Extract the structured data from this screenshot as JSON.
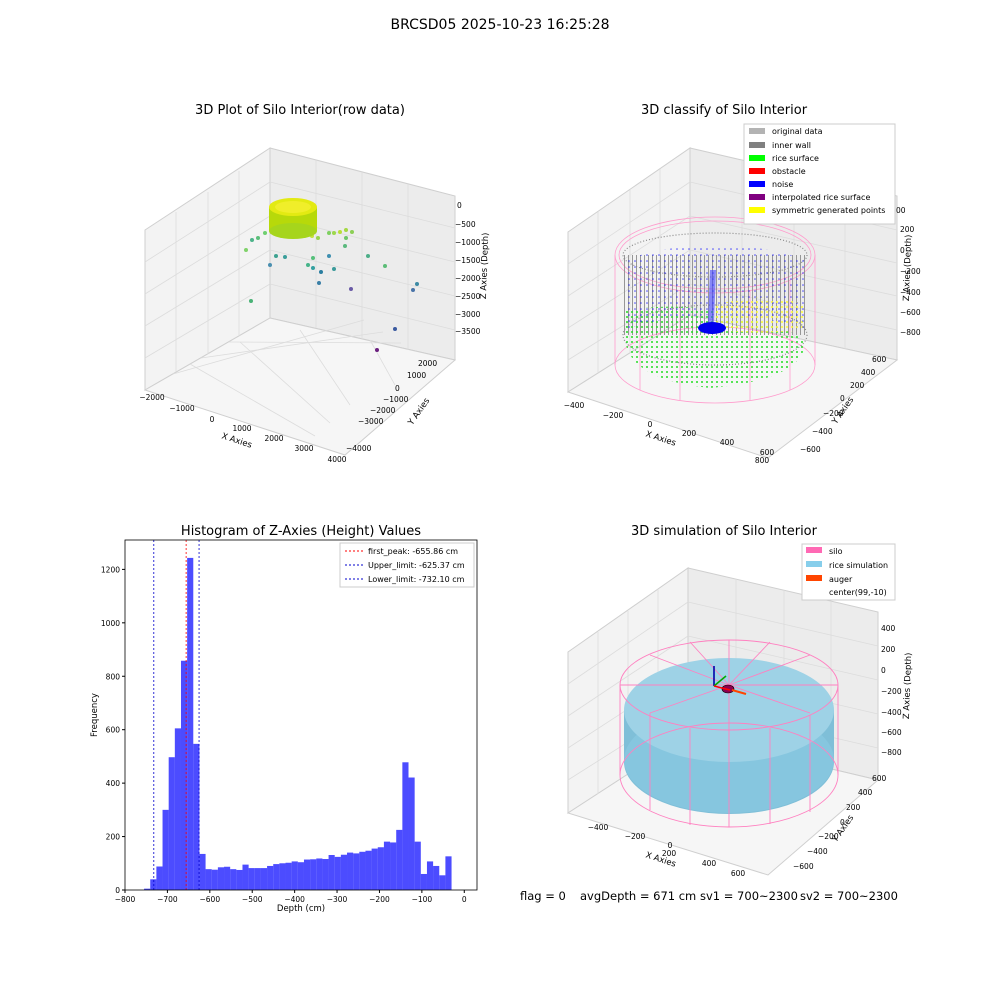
{
  "figure_title": "BRCSD05 2025-10-23 16:25:28",
  "panels": {
    "raw": {
      "title": "3D Plot of Silo Interior(row data)",
      "xlabel": "X Axies",
      "ylabel": "Y Axies",
      "zlabel": "Z Axies (Depth)",
      "xticks": [
        "−2000",
        "−1000",
        "0",
        "1000",
        "2000",
        "3000",
        "4000"
      ],
      "yticks": [
        "2000",
        "1000",
        "0",
        "−1000",
        "−2000",
        "−3000",
        "−4000"
      ],
      "zticks": [
        "0",
        "−500",
        "−1000",
        "−1500",
        "−2000",
        "−2500",
        "−3000",
        "−3500"
      ]
    },
    "classify": {
      "title": "3D classify of Silo Interior",
      "xlabel": "X Axies",
      "ylabel": "Y Axies",
      "zlabel": "Z Axies (Depth)",
      "xticks": [
        "−400",
        "−200",
        "0",
        "200",
        "400",
        "600",
        "800"
      ],
      "yticks": [
        "600",
        "400",
        "200",
        "0",
        "−200",
        "−400",
        "−600"
      ],
      "zticks": [
        "200",
        "0",
        "−200",
        "−400",
        "−600",
        "−800"
      ],
      "zticks_partial": "00",
      "legend": [
        {
          "label": "original data",
          "color": "#b3b3b3"
        },
        {
          "label": "inner wall",
          "color": "#808080"
        },
        {
          "label": "rice surface",
          "color": "#00ff00"
        },
        {
          "label": "obstacle",
          "color": "#ff0000"
        },
        {
          "label": "noise",
          "color": "#0000ff"
        },
        {
          "label": "interpolated rice surface",
          "color": "#800080"
        },
        {
          "label": "symmetric generated points",
          "color": "#ffff00"
        }
      ]
    },
    "simulation": {
      "title": "3D simulation of Silo Interior",
      "xlabel": "X Axies",
      "ylabel": "Y Axies",
      "zlabel": "Z Axies (Depth)",
      "xticks": [
        "−400",
        "−200",
        "0",
        "200",
        "400",
        "600"
      ],
      "yticks": [
        "600",
        "400",
        "200",
        "0",
        "−200",
        "−400",
        "−600"
      ],
      "zticks": [
        "400",
        "200",
        "0",
        "−200",
        "−400",
        "−600",
        "−800"
      ],
      "legend": [
        {
          "label": "silo",
          "color": "#ff69b4"
        },
        {
          "label": "rice simulation",
          "color": "#87ceeb"
        },
        {
          "label": "auger",
          "color": "#ff4500"
        },
        {
          "label": "center(99,-10)",
          "color": ""
        }
      ]
    }
  },
  "footer": {
    "flag": "flag = 0",
    "avg": "avgDepth = 671 cm",
    "sv1": "sv1 = 700~2300",
    "sv2": "sv2 = 700~2300"
  },
  "chart_data": {
    "type": "bar",
    "title": "Histogram of Z-Axies (Height) Values",
    "xlabel": "Depth (cm)",
    "ylabel": "Frequency",
    "xlim": [
      -800,
      30
    ],
    "ylim": [
      0,
      1310
    ],
    "xticks": [
      -800,
      -700,
      -600,
      -500,
      -400,
      -300,
      -200,
      -100,
      0
    ],
    "yticks": [
      0,
      200,
      400,
      600,
      800,
      1000,
      1200
    ],
    "bin_width": 14.5,
    "bin_starts": [
      -755,
      -740.5,
      -726,
      -711.5,
      -697,
      -682.5,
      -668,
      -653.5,
      -639,
      -624.5,
      -610,
      -595.5,
      -581,
      -566.5,
      -552,
      -537.5,
      -523,
      -508.5,
      -494,
      -479.5,
      -465,
      -450.5,
      -436,
      -421.5,
      -407,
      -392.5,
      -378,
      -363.5,
      -349,
      -334.5,
      -320,
      -305.5,
      -291,
      -276.5,
      -262,
      -247.5,
      -233,
      -218.5,
      -204,
      -189.5,
      -175,
      -160.5,
      -146,
      -131.5,
      -117,
      -102.5,
      -88,
      -73.5,
      -59,
      -44.5,
      -30,
      -15.5
    ],
    "counts": [
      5,
      40,
      88,
      300,
      497,
      605,
      858,
      1243,
      547,
      135,
      78,
      76,
      85,
      87,
      78,
      75,
      95,
      82,
      82,
      82,
      90,
      97,
      100,
      102,
      107,
      104,
      114,
      115,
      118,
      116,
      131,
      124,
      132,
      140,
      137,
      143,
      147,
      155,
      160,
      181,
      178,
      225,
      478,
      421,
      181,
      60,
      107,
      90,
      55,
      126,
      0,
      0
    ],
    "lines": [
      {
        "label": "first_peak: -655.86 cm",
        "x": -655.86,
        "color": "#ff0000"
      },
      {
        "label": "Upper_limit: -625.37 cm",
        "x": -625.37,
        "color": "#0000cc"
      },
      {
        "label": "Lower_limit: -732.10 cm",
        "x": -732.1,
        "color": "#0000cc"
      }
    ],
    "bar_color": "#0000ff",
    "legend_loc": "upper right"
  }
}
